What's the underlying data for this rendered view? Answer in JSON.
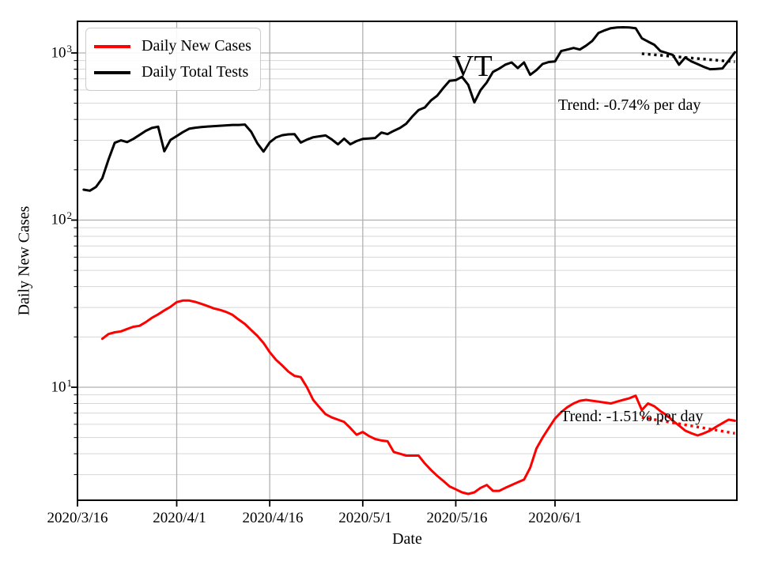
{
  "chart_data": {
    "type": "line",
    "title_annotation": "VT",
    "xlabel": "Date",
    "ylabel": "Daily New Cases",
    "yscale": "log",
    "ylim": [
      2.1,
      1550
    ],
    "grid": true,
    "legend_position": "upper left",
    "x_ticks": [
      "2020/3/16",
      "2020/4/1",
      "2020/4/16",
      "2020/5/1",
      "2020/5/16",
      "2020/6/1"
    ],
    "y_ticks": [
      {
        "base": "10",
        "exp": "1",
        "value": 10
      },
      {
        "base": "10",
        "exp": "2",
        "value": 100
      },
      {
        "base": "10",
        "exp": "3",
        "value": 1000
      }
    ],
    "colors": {
      "cases": "#ff0000",
      "tests": "#000000",
      "grid_major": "#b0b0b0",
      "grid_minor": "#d6d6d6"
    },
    "series": [
      {
        "name": "Daily New Cases",
        "color": "#ff0000",
        "points": [
          [
            "2020/3/20",
            19.5
          ],
          [
            "2020/3/21",
            20.8
          ],
          [
            "2020/3/22",
            21.3
          ],
          [
            "2020/3/23",
            21.6
          ],
          [
            "2020/3/24",
            22.3
          ],
          [
            "2020/3/25",
            23.0
          ],
          [
            "2020/3/26",
            23.3
          ],
          [
            "2020/3/27",
            24.5
          ],
          [
            "2020/3/28",
            26.0
          ],
          [
            "2020/3/29",
            27.3
          ],
          [
            "2020/3/30",
            28.8
          ],
          [
            "2020/3/31",
            30.3
          ],
          [
            "2020/4/1",
            32.3
          ],
          [
            "2020/4/2",
            33.0
          ],
          [
            "2020/4/3",
            33.0
          ],
          [
            "2020/4/4",
            32.4
          ],
          [
            "2020/4/5",
            31.5
          ],
          [
            "2020/4/6",
            30.6
          ],
          [
            "2020/4/7",
            29.6
          ],
          [
            "2020/4/8",
            29.0
          ],
          [
            "2020/4/9",
            28.2
          ],
          [
            "2020/4/10",
            27.1
          ],
          [
            "2020/4/11",
            25.4
          ],
          [
            "2020/4/12",
            23.9
          ],
          [
            "2020/4/13",
            22.0
          ],
          [
            "2020/4/14",
            20.3
          ],
          [
            "2020/4/15",
            18.4
          ],
          [
            "2020/4/16",
            16.2
          ],
          [
            "2020/4/17",
            14.6
          ],
          [
            "2020/4/18",
            13.5
          ],
          [
            "2020/4/19",
            12.4
          ],
          [
            "2020/4/20",
            11.7
          ],
          [
            "2020/4/21",
            11.5
          ],
          [
            "2020/4/22",
            10.0
          ],
          [
            "2020/4/23",
            8.4
          ],
          [
            "2020/4/24",
            7.6
          ],
          [
            "2020/4/25",
            6.9
          ],
          [
            "2020/4/26",
            6.6
          ],
          [
            "2020/4/27",
            6.4
          ],
          [
            "2020/4/28",
            6.2
          ],
          [
            "2020/4/29",
            5.7
          ],
          [
            "2020/4/30",
            5.2
          ],
          [
            "2020/5/1",
            5.4
          ],
          [
            "2020/5/2",
            5.1
          ],
          [
            "2020/5/3",
            4.9
          ],
          [
            "2020/5/4",
            4.8
          ],
          [
            "2020/5/5",
            4.75
          ],
          [
            "2020/5/6",
            4.1
          ],
          [
            "2020/5/7",
            4.0
          ],
          [
            "2020/5/8",
            3.9
          ],
          [
            "2020/5/9",
            3.9
          ],
          [
            "2020/5/10",
            3.9
          ],
          [
            "2020/5/11",
            3.5
          ],
          [
            "2020/5/12",
            3.2
          ],
          [
            "2020/5/13",
            2.95
          ],
          [
            "2020/5/14",
            2.75
          ],
          [
            "2020/5/15",
            2.55
          ],
          [
            "2020/5/16",
            2.45
          ],
          [
            "2020/5/17",
            2.35
          ],
          [
            "2020/5/18",
            2.3
          ],
          [
            "2020/5/19",
            2.35
          ],
          [
            "2020/5/20",
            2.5
          ],
          [
            "2020/5/21",
            2.6
          ],
          [
            "2020/5/22",
            2.4
          ],
          [
            "2020/5/23",
            2.4
          ],
          [
            "2020/5/24",
            2.5
          ],
          [
            "2020/5/25",
            2.6
          ],
          [
            "2020/5/26",
            2.7
          ],
          [
            "2020/5/27",
            2.8
          ],
          [
            "2020/5/28",
            3.3
          ],
          [
            "2020/5/29",
            4.3
          ],
          [
            "2020/5/30",
            5.0
          ],
          [
            "2020/5/31",
            5.7
          ],
          [
            "2020/6/1",
            6.5
          ],
          [
            "2020/6/2",
            7.1
          ],
          [
            "2020/6/3",
            7.6
          ],
          [
            "2020/6/4",
            8.0
          ],
          [
            "2020/6/5",
            8.3
          ],
          [
            "2020/6/6",
            8.4
          ],
          [
            "2020/6/7",
            8.3
          ],
          [
            "2020/6/8",
            8.2
          ],
          [
            "2020/6/9",
            8.1
          ],
          [
            "2020/6/10",
            8.0
          ],
          [
            "2020/6/11",
            8.2
          ],
          [
            "2020/6/12",
            8.4
          ],
          [
            "2020/6/13",
            8.6
          ],
          [
            "2020/6/14",
            8.9
          ],
          [
            "2020/6/15",
            7.3
          ],
          [
            "2020/6/16",
            8.0
          ],
          [
            "2020/6/17",
            7.7
          ],
          [
            "2020/6/18",
            7.2
          ],
          [
            "2020/6/19",
            6.8
          ],
          [
            "2020/6/20",
            6.3
          ],
          [
            "2020/6/21",
            5.9
          ],
          [
            "2020/6/22",
            5.5
          ],
          [
            "2020/6/23",
            5.3
          ],
          [
            "2020/6/24",
            5.15
          ],
          [
            "2020/6/25",
            5.3
          ],
          [
            "2020/6/26",
            5.5
          ],
          [
            "2020/6/27",
            5.8
          ],
          [
            "2020/6/28",
            6.1
          ],
          [
            "2020/6/29",
            6.4
          ],
          [
            "2020/6/30",
            6.3
          ]
        ]
      },
      {
        "name": "Daily Total Tests",
        "color": "#000000",
        "points": [
          [
            "2020/3/17",
            152
          ],
          [
            "2020/3/18",
            150
          ],
          [
            "2020/3/19",
            158
          ],
          [
            "2020/3/20",
            178
          ],
          [
            "2020/3/21",
            230
          ],
          [
            "2020/3/22",
            290
          ],
          [
            "2020/3/23",
            300
          ],
          [
            "2020/3/24",
            293
          ],
          [
            "2020/3/25",
            306
          ],
          [
            "2020/3/26",
            323
          ],
          [
            "2020/3/27",
            342
          ],
          [
            "2020/3/28",
            356
          ],
          [
            "2020/3/29",
            362
          ],
          [
            "2020/3/30",
            258
          ],
          [
            "2020/3/31",
            302
          ],
          [
            "2020/4/1",
            318
          ],
          [
            "2020/4/2",
            336
          ],
          [
            "2020/4/3",
            352
          ],
          [
            "2020/4/4",
            357
          ],
          [
            "2020/4/5",
            360
          ],
          [
            "2020/4/6",
            363
          ],
          [
            "2020/4/7",
            365
          ],
          [
            "2020/4/8",
            367
          ],
          [
            "2020/4/9",
            369
          ],
          [
            "2020/4/10",
            371
          ],
          [
            "2020/4/11",
            371
          ],
          [
            "2020/4/12",
            373
          ],
          [
            "2020/4/13",
            338
          ],
          [
            "2020/4/14",
            288
          ],
          [
            "2020/4/15",
            257
          ],
          [
            "2020/4/16",
            292
          ],
          [
            "2020/4/17",
            312
          ],
          [
            "2020/4/18",
            322
          ],
          [
            "2020/4/19",
            326
          ],
          [
            "2020/4/20",
            327
          ],
          [
            "2020/4/21",
            291
          ],
          [
            "2020/4/22",
            303
          ],
          [
            "2020/4/23",
            313
          ],
          [
            "2020/4/24",
            317
          ],
          [
            "2020/4/25",
            321
          ],
          [
            "2020/4/26",
            304
          ],
          [
            "2020/4/27",
            284
          ],
          [
            "2020/4/28",
            307
          ],
          [
            "2020/4/29",
            284
          ],
          [
            "2020/4/30",
            297
          ],
          [
            "2020/5/1",
            306
          ],
          [
            "2020/5/2",
            308
          ],
          [
            "2020/5/3",
            310
          ],
          [
            "2020/5/4",
            334
          ],
          [
            "2020/5/5",
            327
          ],
          [
            "2020/5/6",
            342
          ],
          [
            "2020/5/7",
            356
          ],
          [
            "2020/5/8",
            377
          ],
          [
            "2020/5/9",
            417
          ],
          [
            "2020/5/10",
            455
          ],
          [
            "2020/5/11",
            472
          ],
          [
            "2020/5/12",
            520
          ],
          [
            "2020/5/13",
            555
          ],
          [
            "2020/5/14",
            618
          ],
          [
            "2020/5/15",
            681
          ],
          [
            "2020/5/16",
            688
          ],
          [
            "2020/5/17",
            720
          ],
          [
            "2020/5/18",
            645
          ],
          [
            "2020/5/19",
            506
          ],
          [
            "2020/5/20",
            600
          ],
          [
            "2020/5/21",
            666
          ],
          [
            "2020/5/22",
            770
          ],
          [
            "2020/5/23",
            806
          ],
          [
            "2020/5/24",
            851
          ],
          [
            "2020/5/25",
            878
          ],
          [
            "2020/5/26",
            812
          ],
          [
            "2020/5/27",
            878
          ],
          [
            "2020/5/28",
            740
          ],
          [
            "2020/5/29",
            790
          ],
          [
            "2020/5/30",
            860
          ],
          [
            "2020/5/31",
            882
          ],
          [
            "2020/6/1",
            890
          ],
          [
            "2020/6/2",
            1026
          ],
          [
            "2020/6/3",
            1048
          ],
          [
            "2020/6/4",
            1071
          ],
          [
            "2020/6/5",
            1048
          ],
          [
            "2020/6/6",
            1105
          ],
          [
            "2020/6/7",
            1180
          ],
          [
            "2020/6/8",
            1315
          ],
          [
            "2020/6/9",
            1365
          ],
          [
            "2020/6/10",
            1406
          ],
          [
            "2020/6/11",
            1420
          ],
          [
            "2020/6/12",
            1425
          ],
          [
            "2020/6/13",
            1422
          ],
          [
            "2020/6/14",
            1406
          ],
          [
            "2020/6/15",
            1225
          ],
          [
            "2020/6/16",
            1170
          ],
          [
            "2020/6/17",
            1120
          ],
          [
            "2020/6/18",
            1026
          ],
          [
            "2020/6/19",
            1000
          ],
          [
            "2020/6/20",
            972
          ],
          [
            "2020/6/21",
            850
          ],
          [
            "2020/6/22",
            940
          ],
          [
            "2020/6/23",
            889
          ],
          [
            "2020/6/24",
            858
          ],
          [
            "2020/6/25",
            826
          ],
          [
            "2020/6/26",
            799
          ],
          [
            "2020/6/27",
            803
          ],
          [
            "2020/6/28",
            808
          ],
          [
            "2020/6/29",
            900
          ],
          [
            "2020/6/30",
            1010
          ]
        ]
      }
    ],
    "trend_lines": [
      {
        "series": "Daily Total Tests",
        "label": "Trend: -0.74% per day",
        "rate_percent_per_day": -0.74,
        "color": "#000000",
        "start": [
          "2020/6/15",
          990
        ],
        "end": [
          "2020/6/30",
          885
        ]
      },
      {
        "series": "Daily New Cases",
        "label": "Trend: -1.51% per day",
        "rate_percent_per_day": -1.51,
        "color": "#ff0000",
        "start": [
          "2020/6/15",
          6.6
        ],
        "end": [
          "2020/6/30",
          5.3
        ]
      }
    ],
    "legend": {
      "entries": [
        {
          "label": "Daily New Cases",
          "color": "#ff0000"
        },
        {
          "label": "Daily Total Tests",
          "color": "#000000"
        }
      ]
    }
  }
}
